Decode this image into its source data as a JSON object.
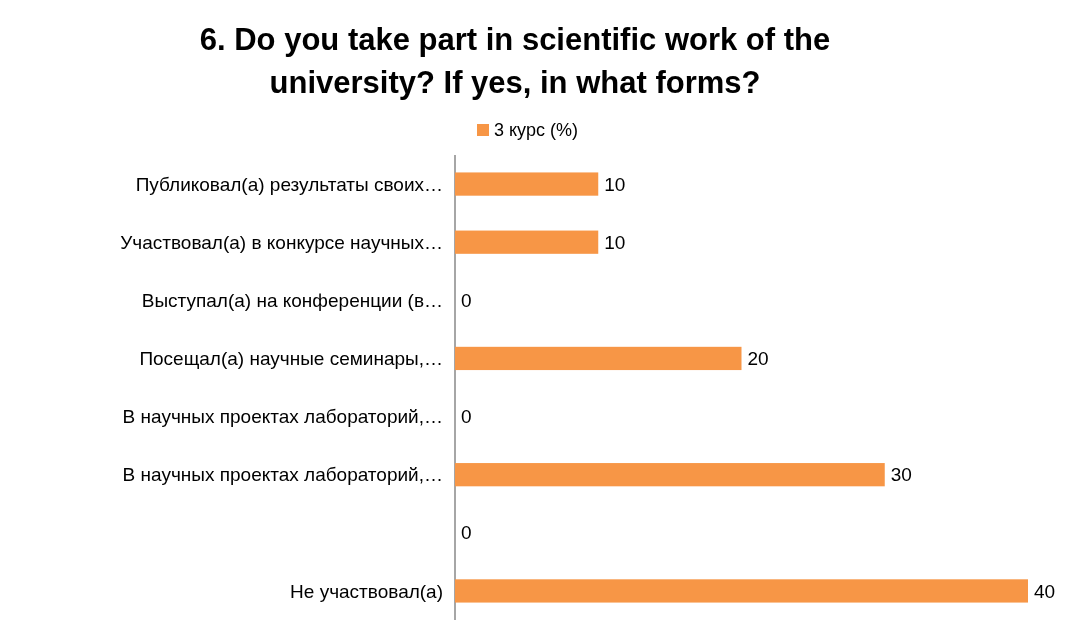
{
  "chart_data": {
    "type": "bar",
    "orientation": "horizontal",
    "title": "6. Do you take part in scientific work of the university? If yes, in what forms?",
    "categories": [
      "Публиковал(а) результаты своих…",
      "Участвовал(а) в конкурсе научных…",
      "Выступал(а) на конференции (в…",
      "Посещал(а) научные семинары,…",
      "В научных проектах лабораторий,…",
      "В научных проектах лабораторий,…",
      null,
      "Не участвовал(а)"
    ],
    "series": [
      {
        "name": "3 курс (%)",
        "color": "#f79646",
        "values": [
          10,
          10,
          0,
          20,
          0,
          30,
          0,
          40
        ]
      }
    ],
    "data_labels": true,
    "legend": "top",
    "grid": false
  }
}
